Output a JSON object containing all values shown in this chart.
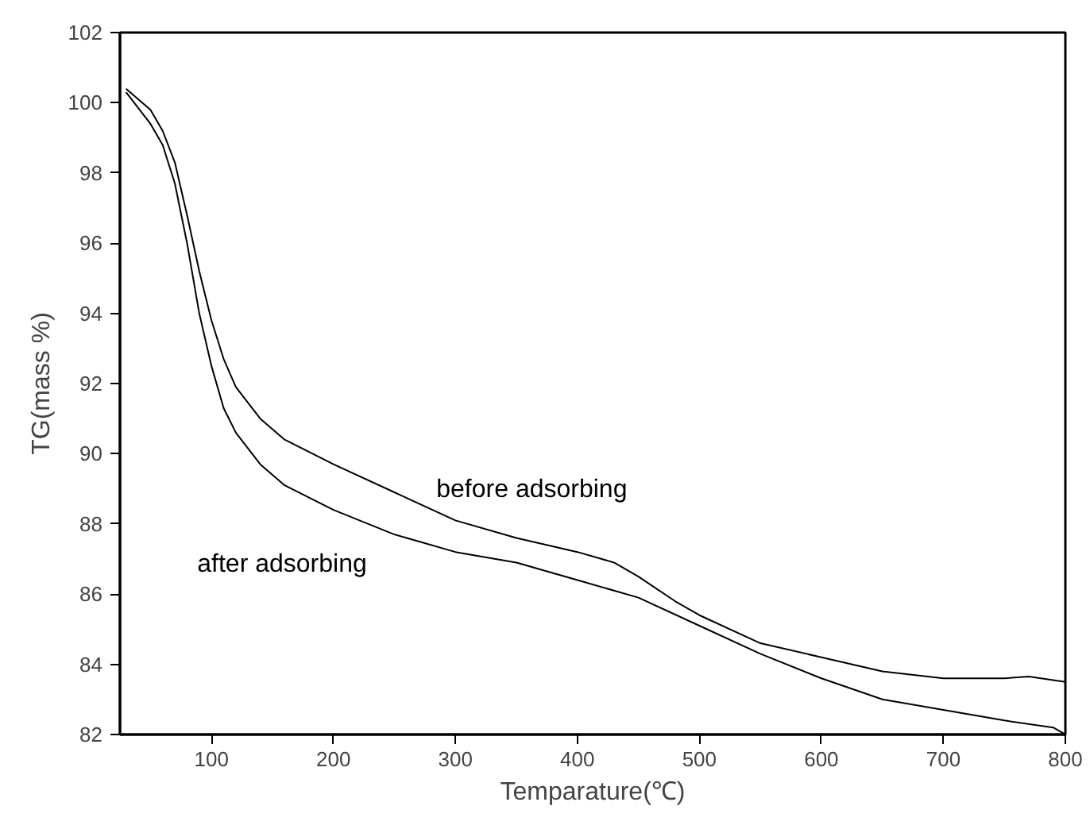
{
  "chart_data": {
    "type": "line",
    "xlabel": "Temparature(℃)",
    "ylabel": "TG(mass %)",
    "xlim": [
      25,
      800
    ],
    "ylim": [
      82,
      102
    ],
    "xticks": [
      100,
      200,
      300,
      400,
      500,
      600,
      700,
      800
    ],
    "yticks": [
      82,
      84,
      86,
      88,
      90,
      92,
      94,
      96,
      98,
      100,
      102
    ],
    "grid": false,
    "marker": "none",
    "line_style": "solid",
    "series": [
      {
        "name": "before adsorbing",
        "color": "#000000",
        "x": [
          30,
          50,
          60,
          70,
          80,
          90,
          100,
          110,
          120,
          140,
          160,
          200,
          250,
          300,
          350,
          400,
          430,
          450,
          480,
          500,
          550,
          600,
          650,
          700,
          750,
          770,
          800
        ],
        "values": [
          100.4,
          99.8,
          99.2,
          98.3,
          96.8,
          95.2,
          93.8,
          92.7,
          91.9,
          91.0,
          90.4,
          89.7,
          88.9,
          88.1,
          87.6,
          87.2,
          86.9,
          86.5,
          85.8,
          85.4,
          84.6,
          84.2,
          83.8,
          83.6,
          83.6,
          83.65,
          83.5
        ]
      },
      {
        "name": "after adsorbing",
        "color": "#000000",
        "x": [
          30,
          50,
          60,
          70,
          80,
          90,
          100,
          110,
          120,
          140,
          160,
          200,
          250,
          300,
          350,
          400,
          430,
          450,
          500,
          550,
          600,
          650,
          700,
          750,
          790,
          800
        ],
        "values": [
          100.3,
          99.4,
          98.8,
          97.7,
          96.0,
          94.0,
          92.5,
          91.3,
          90.6,
          89.7,
          89.1,
          88.4,
          87.7,
          87.2,
          86.9,
          86.4,
          86.1,
          85.9,
          85.1,
          84.3,
          83.6,
          83.0,
          82.7,
          82.4,
          82.2,
          82.0
        ]
      }
    ]
  }
}
